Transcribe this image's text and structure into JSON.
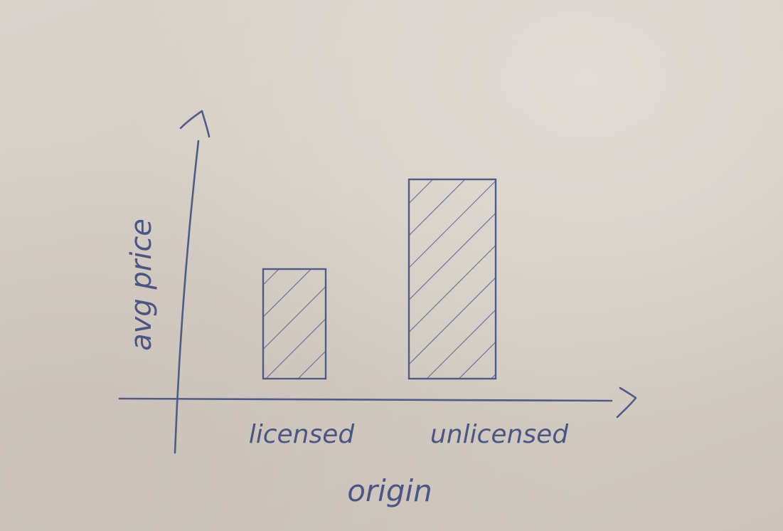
{
  "chart_data": {
    "type": "bar",
    "title": "",
    "xlabel": "origin",
    "ylabel": "avg price",
    "categories": [
      "licensed",
      "unlicensed"
    ],
    "values": [
      0.55,
      1.0
    ],
    "value_units": "relative (no tick labels shown)",
    "ylim": [
      0,
      1.2
    ],
    "bar_fill": "hatched",
    "grid": false,
    "legend": "none",
    "ink_color": "#525a86"
  }
}
